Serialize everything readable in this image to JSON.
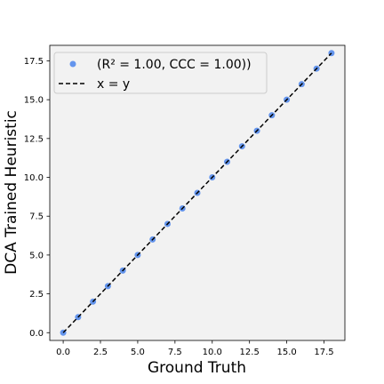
{
  "chart_data": {
    "type": "scatter",
    "xlabel": "Ground Truth",
    "ylabel": "DCA Trained Heuristic",
    "xlim": [
      -0.9,
      18.9
    ],
    "ylim": [
      -0.5,
      18.5
    ],
    "xticks": [
      0.0,
      2.5,
      5.0,
      7.5,
      10.0,
      12.5,
      15.0,
      17.5
    ],
    "yticks": [
      0.0,
      2.5,
      5.0,
      7.5,
      10.0,
      12.5,
      15.0,
      17.5
    ],
    "tick_format_decimals": 1,
    "grid": false,
    "background": "#f2f2f2",
    "legend_position": "top-left",
    "series": [
      {
        "name": "(R² = 1.00, CCC = 1.00))",
        "kind": "scatter",
        "color": "#6495ed",
        "x": [
          0,
          1,
          2,
          3,
          4,
          5,
          6,
          7,
          8,
          9,
          10,
          11,
          12,
          13,
          14,
          15,
          16,
          17,
          18
        ],
        "y": [
          0,
          1,
          2,
          3,
          4,
          5,
          6,
          7,
          8,
          9,
          10,
          11,
          12,
          13,
          14,
          15,
          16,
          17,
          18
        ]
      },
      {
        "name": "x = y",
        "kind": "line",
        "style": "dashed",
        "color": "#000000",
        "x": [
          0,
          18
        ],
        "y": [
          0,
          18
        ]
      }
    ]
  }
}
